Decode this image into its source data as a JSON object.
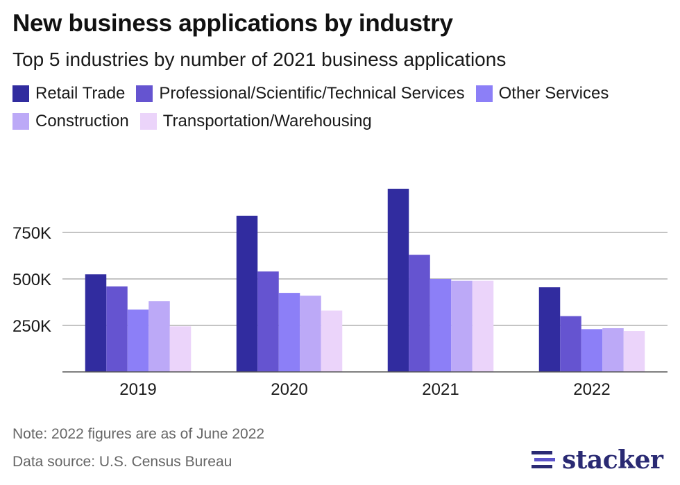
{
  "title": "New business applications by industry",
  "subtitle": "Top 5 industries by number of 2021 business applications",
  "note": "Note: 2022 figures are as of June 2022",
  "source": "Data source: U.S. Census Bureau",
  "brand": {
    "name": "stacker",
    "icon": "stacker-logo-icon"
  },
  "colors": {
    "retail": "#312c9f",
    "professional": "#6554d0",
    "other": "#8c7ff7",
    "construction": "#bca9f7",
    "transportation": "#ebd4fa"
  },
  "chart_data": {
    "type": "bar",
    "title": "New business applications by industry",
    "xlabel": "",
    "ylabel": "",
    "ylim": [
      0,
      1000000
    ],
    "yticks": [
      250000,
      500000,
      750000
    ],
    "ytick_labels": [
      "250K",
      "500K",
      "750K"
    ],
    "grid": true,
    "legend_position": "top",
    "categories": [
      "2019",
      "2020",
      "2021",
      "2022"
    ],
    "series": [
      {
        "name": "Retail Trade",
        "color": "#312c9f",
        "values": [
          525000,
          840000,
          985000,
          455000
        ]
      },
      {
        "name": "Professional/Scientific/Technical Services",
        "color": "#6554d0",
        "values": [
          460000,
          540000,
          630000,
          300000
        ]
      },
      {
        "name": "Other Services",
        "color": "#8c7ff7",
        "values": [
          335000,
          425000,
          500000,
          230000
        ]
      },
      {
        "name": "Construction",
        "color": "#bca9f7",
        "values": [
          380000,
          410000,
          490000,
          235000
        ]
      },
      {
        "name": "Transportation/Warehousing",
        "color": "#ebd4fa",
        "values": [
          245000,
          330000,
          490000,
          220000
        ]
      }
    ]
  }
}
